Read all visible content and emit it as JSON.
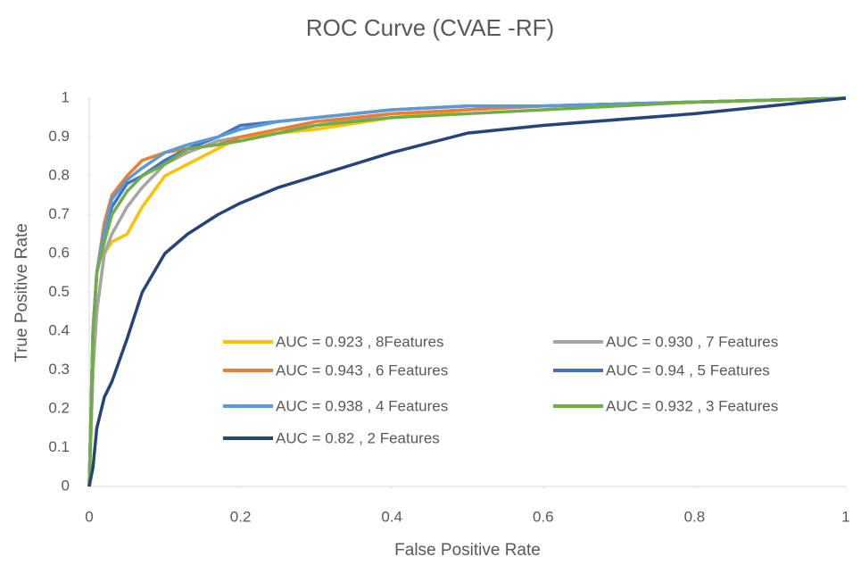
{
  "chart_data": {
    "type": "line",
    "title": "ROC Curve  (CVAE -RF)",
    "x_label": "False Positive Rate",
    "y_label": "True Positive Rate",
    "x": [
      0,
      0.005,
      0.01,
      0.02,
      0.03,
      0.05,
      0.07,
      0.1,
      0.13,
      0.17,
      0.2,
      0.25,
      0.3,
      0.4,
      0.5,
      0.6,
      0.8,
      1
    ],
    "series": [
      {
        "name": "AUC = 0.923 , 8Features",
        "color": "#FFC000",
        "values": [
          0,
          0.3,
          0.45,
          0.6,
          0.63,
          0.65,
          0.72,
          0.8,
          0.83,
          0.87,
          0.9,
          0.91,
          0.92,
          0.95,
          0.97,
          0.98,
          0.99,
          1
        ]
      },
      {
        "name": "AUC = 0.930 , 7 Features",
        "color": "#A5A5A5",
        "values": [
          0,
          0.3,
          0.45,
          0.6,
          0.65,
          0.72,
          0.77,
          0.83,
          0.86,
          0.89,
          0.9,
          0.92,
          0.93,
          0.96,
          0.97,
          0.98,
          0.99,
          1
        ]
      },
      {
        "name": "AUC = 0.943 , 6 Features",
        "color": "#ED7D31",
        "values": [
          0,
          0.4,
          0.55,
          0.68,
          0.75,
          0.8,
          0.84,
          0.86,
          0.87,
          0.88,
          0.9,
          0.92,
          0.94,
          0.96,
          0.97,
          0.98,
          0.99,
          1
        ]
      },
      {
        "name": "AUC = 0.94 , 5 Features",
        "color": "#4472C4",
        "values": [
          0,
          0.4,
          0.55,
          0.65,
          0.72,
          0.78,
          0.8,
          0.84,
          0.87,
          0.9,
          0.93,
          0.94,
          0.95,
          0.97,
          0.98,
          0.98,
          0.99,
          1
        ]
      },
      {
        "name": "AUC = 0.938 , 4 Features",
        "color": "#5B9BD5",
        "values": [
          0,
          0.4,
          0.55,
          0.66,
          0.74,
          0.79,
          0.82,
          0.86,
          0.88,
          0.9,
          0.92,
          0.94,
          0.95,
          0.97,
          0.98,
          0.98,
          0.99,
          1
        ]
      },
      {
        "name": "AUC = 0.932 , 3 Features",
        "color": "#70AD47",
        "values": [
          0,
          0.4,
          0.55,
          0.63,
          0.7,
          0.76,
          0.8,
          0.83,
          0.87,
          0.88,
          0.89,
          0.91,
          0.93,
          0.95,
          0.96,
          0.97,
          0.99,
          1
        ]
      },
      {
        "name": "AUC = 0.82 , 2 Features",
        "color": "#264478",
        "values": [
          0,
          0.05,
          0.15,
          0.23,
          0.27,
          0.38,
          0.5,
          0.6,
          0.65,
          0.7,
          0.73,
          0.77,
          0.8,
          0.86,
          0.91,
          0.93,
          0.96,
          1
        ]
      }
    ],
    "xlim": [
      0,
      1
    ],
    "xticks": [
      0,
      0.2,
      0.4,
      0.6,
      0.8,
      1
    ],
    "ylim": [
      0,
      1
    ],
    "yticks": [
      0,
      0.1,
      0.2,
      0.3,
      0.4,
      0.5,
      0.6,
      0.7,
      0.8,
      0.9,
      1
    ]
  }
}
